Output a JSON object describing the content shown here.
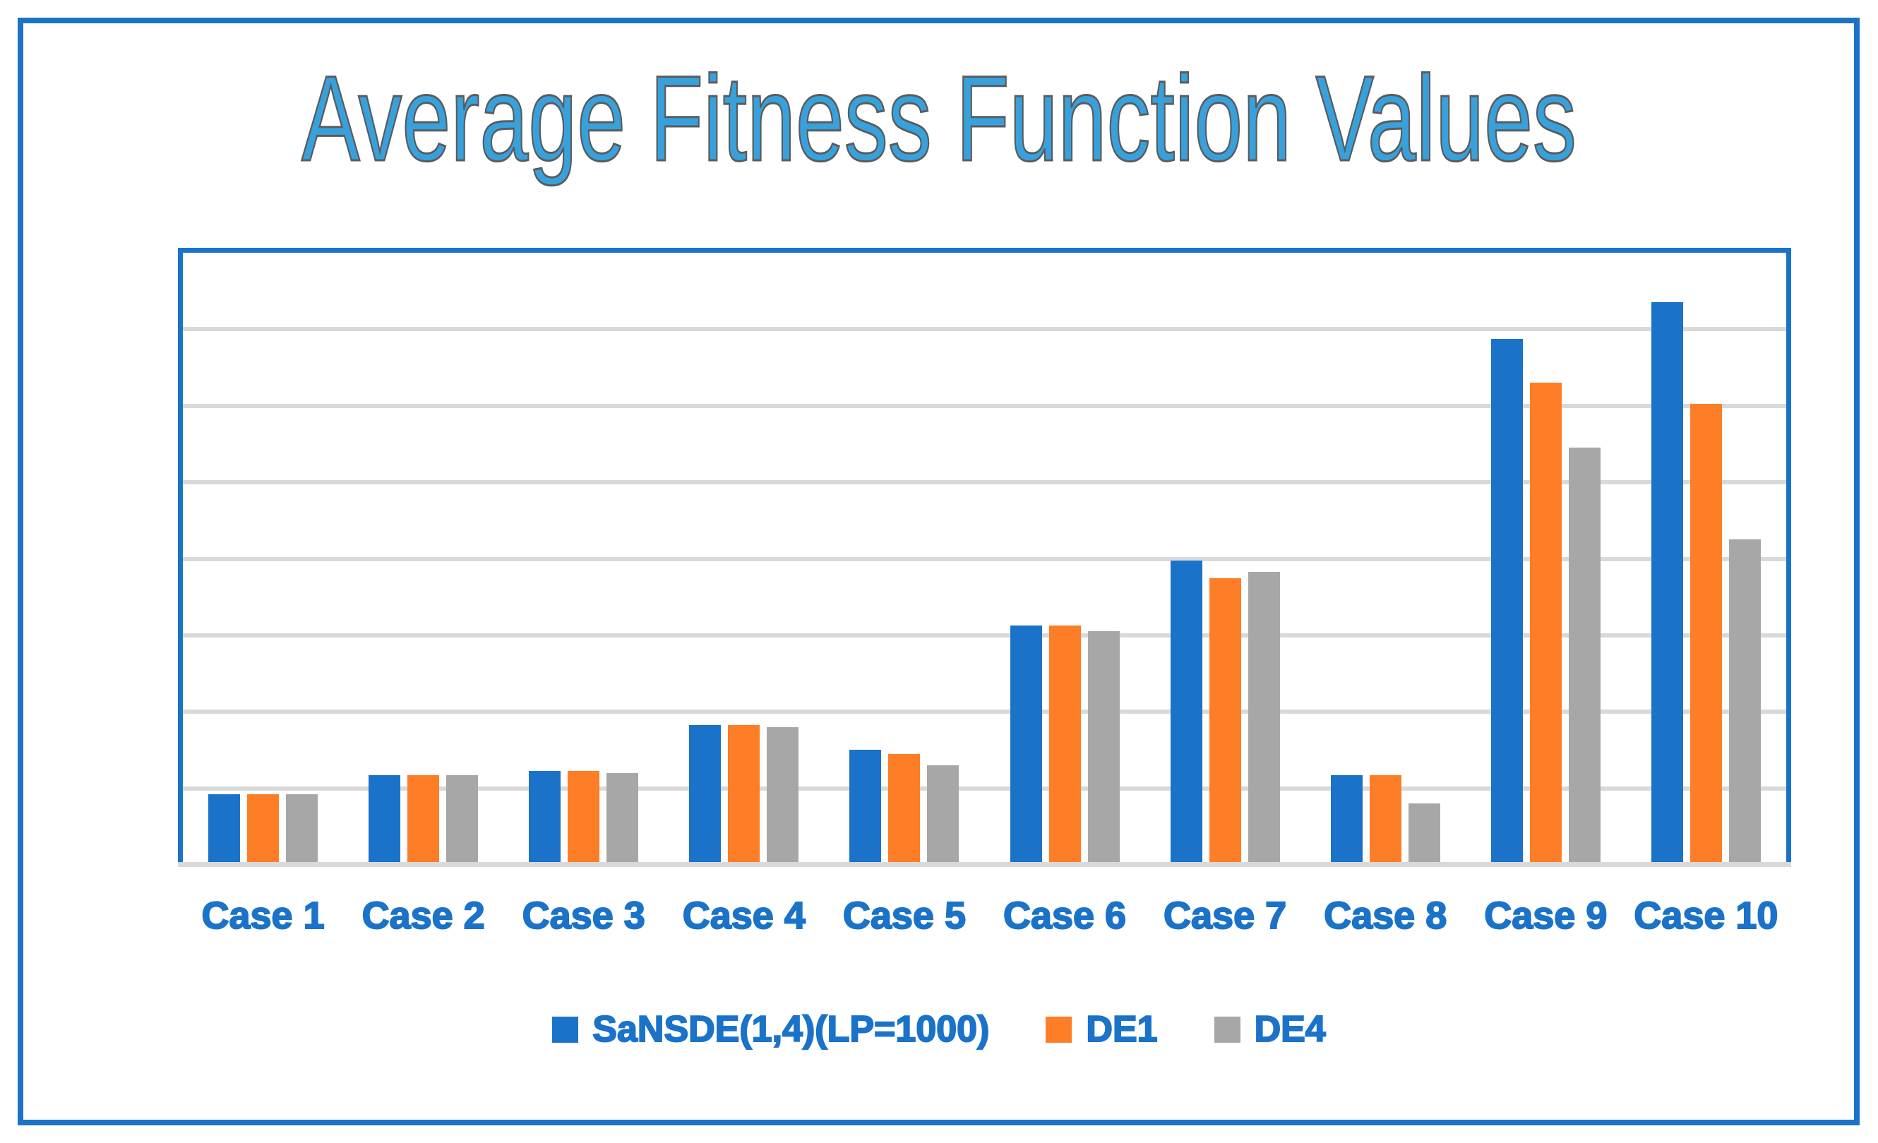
{
  "title": "Average Fitness Function Values",
  "colors": {
    "accent_blue": "#1A73C8",
    "series_blue": "#1A73C8",
    "series_orange": "#FD7E27",
    "series_gray": "#A8A7A7",
    "gridline": "#D9D9D9",
    "title_fill": "#38A1DC",
    "title_outline": "#5B5B5B",
    "frame_border": "#1A73C8"
  },
  "chart_data": {
    "type": "bar",
    "title": "Average Fitness Function Values",
    "xlabel": "",
    "ylabel": "",
    "categories": [
      "Case 1",
      "Case 2",
      "Case 3",
      "Case 4",
      "Case 5",
      "Case 6",
      "Case 7",
      "Case 8",
      "Case 9",
      "Case 10"
    ],
    "series": [
      {
        "name": "SaNSDE(1,4)(LP=1000)",
        "color": "#1A73C8",
        "values": [
          18.5,
          23.5,
          24.5,
          36.5,
          30,
          62.5,
          79.5,
          23.5,
          137.5,
          147
        ]
      },
      {
        "name": "DE1",
        "color": "#FD7E27",
        "values": [
          18.5,
          23.5,
          24.5,
          36.5,
          29,
          62.5,
          75,
          23.5,
          126,
          120.5
        ]
      },
      {
        "name": "DE4",
        "color": "#A8A7A7",
        "values": [
          18.5,
          23.5,
          24,
          36,
          26,
          61,
          76.5,
          16,
          109,
          85
        ]
      }
    ],
    "ylim": [
      0,
      160
    ],
    "yticks": [
      0,
      20,
      40,
      60,
      80,
      100,
      120,
      140,
      160
    ],
    "grid": true,
    "legend_position": "bottom"
  }
}
